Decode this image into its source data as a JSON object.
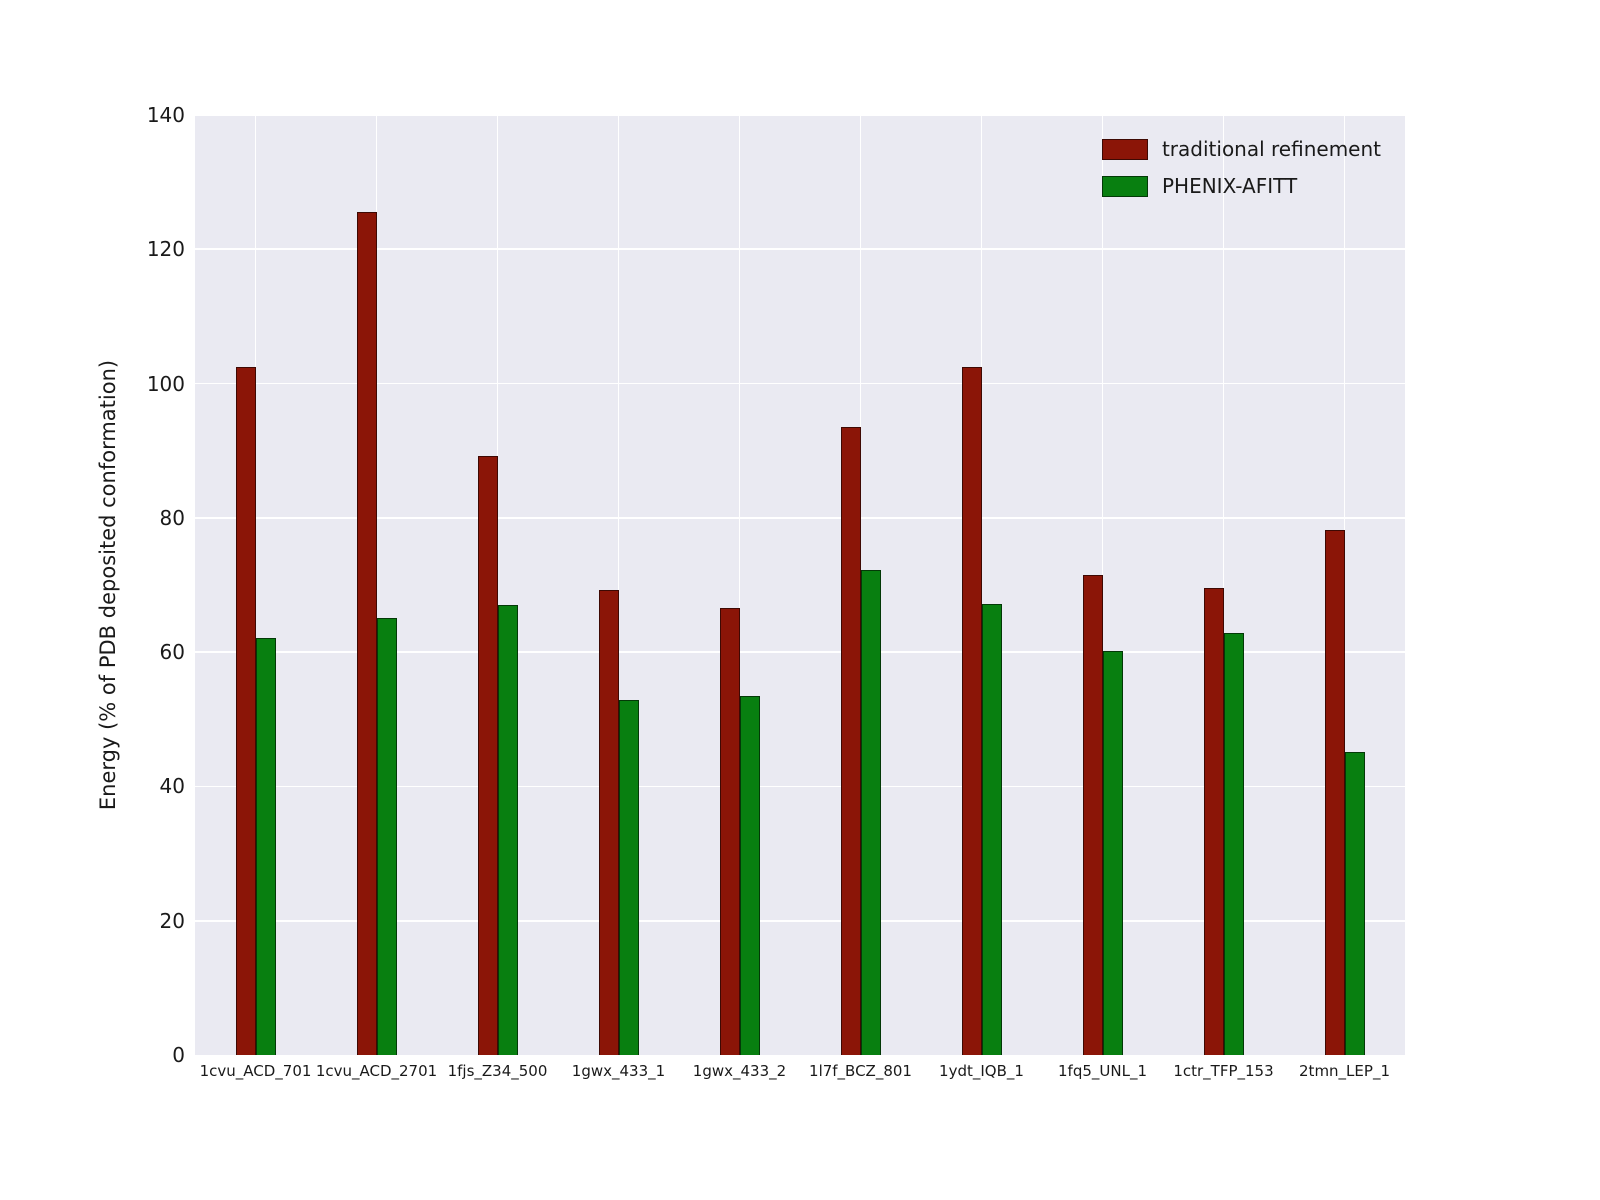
{
  "chart_data": {
    "type": "bar",
    "title": "",
    "xlabel": "",
    "ylabel": "Energy (% of PDB deposited conformation)",
    "ylim": [
      0,
      140
    ],
    "yticks": [
      0,
      20,
      40,
      60,
      80,
      100,
      120,
      140
    ],
    "grid": true,
    "legend_position": "upper right",
    "plot_background": "#eaeaf2",
    "gridline_color": "#ffffff",
    "categories": [
      "1cvu_ACD_701",
      "1cvu_ACD_2701",
      "1fjs_Z34_500",
      "1gwx_433_1",
      "1gwx_433_2",
      "1l7f_BCZ_801",
      "1ydt_IQB_1",
      "1fq5_UNL_1",
      "1ctr_TFP_153",
      "2tmn_LEP_1"
    ],
    "series": [
      {
        "name": "traditional refinement",
        "color": "#8b1507",
        "values": [
          102.5,
          125.5,
          89.2,
          69.2,
          66.6,
          93.5,
          102.5,
          71.5,
          69.5,
          78.2
        ]
      },
      {
        "name": "PHENIX-AFITT",
        "color": "#087f10",
        "values": [
          62.1,
          65.1,
          67.0,
          52.9,
          53.4,
          72.3,
          67.2,
          60.1,
          62.9,
          45.1
        ]
      }
    ]
  }
}
